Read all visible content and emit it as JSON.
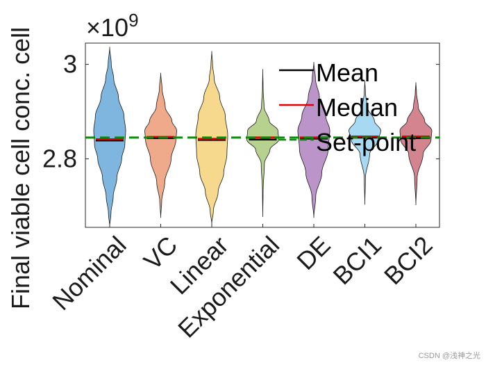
{
  "chart_data": {
    "type": "violin",
    "title": "",
    "xlabel": "",
    "ylabel": "Final viable cell conc. cell",
    "y_exponent_label": "×10",
    "y_exponent_power": "9",
    "ylim": [
      2.655,
      3.045
    ],
    "yticks": [
      {
        "value": 2.8,
        "label": "2.8"
      },
      {
        "value": 3.0,
        "label": "3"
      }
    ],
    "setpoint": 2.845,
    "categories": [
      "Nominal",
      "VC",
      "Linear",
      "Exponential",
      "DE",
      "BCI1",
      "BCI2"
    ],
    "series": [
      {
        "name": "Nominal",
        "color": "#7fb6df",
        "min": 2.656,
        "max": 3.037,
        "mean": 2.841,
        "median": 2.84,
        "profile": [
          [
            2.656,
            0.0
          ],
          [
            2.685,
            0.08
          ],
          [
            2.72,
            0.22
          ],
          [
            2.76,
            0.45
          ],
          [
            2.8,
            0.75
          ],
          [
            2.83,
            0.95
          ],
          [
            2.86,
            1.0
          ],
          [
            2.89,
            0.9
          ],
          [
            2.93,
            0.55
          ],
          [
            2.97,
            0.25
          ],
          [
            3.0,
            0.1
          ],
          [
            3.037,
            0.0
          ]
        ]
      },
      {
        "name": "VC",
        "color": "#eeaa8a",
        "min": 2.675,
        "max": 2.982,
        "mean": 2.846,
        "median": 2.845,
        "profile": [
          [
            2.675,
            0.0
          ],
          [
            2.71,
            0.06
          ],
          [
            2.75,
            0.25
          ],
          [
            2.8,
            0.65
          ],
          [
            2.84,
            0.95
          ],
          [
            2.86,
            1.0
          ],
          [
            2.88,
            0.7
          ],
          [
            2.91,
            0.28
          ],
          [
            2.95,
            0.08
          ],
          [
            2.982,
            0.0
          ]
        ]
      },
      {
        "name": "Linear",
        "color": "#f6d98d",
        "min": 2.662,
        "max": 3.028,
        "mean": 2.842,
        "median": 2.841,
        "profile": [
          [
            2.662,
            0.0
          ],
          [
            2.69,
            0.1
          ],
          [
            2.73,
            0.4
          ],
          [
            2.77,
            0.75
          ],
          [
            2.81,
            0.95
          ],
          [
            2.85,
            1.0
          ],
          [
            2.89,
            0.85
          ],
          [
            2.93,
            0.5
          ],
          [
            2.97,
            0.15
          ],
          [
            3.0,
            0.05
          ],
          [
            3.028,
            0.0
          ]
        ]
      },
      {
        "name": "Exponential",
        "color": "#b7d18f",
        "min": 2.677,
        "max": 2.99,
        "mean": 2.843,
        "median": 2.844,
        "profile": [
          [
            2.677,
            0.0
          ],
          [
            2.73,
            0.02
          ],
          [
            2.79,
            0.1
          ],
          [
            2.82,
            0.45
          ],
          [
            2.84,
            1.0
          ],
          [
            2.86,
            0.95
          ],
          [
            2.88,
            0.4
          ],
          [
            2.91,
            0.08
          ],
          [
            2.95,
            0.02
          ],
          [
            2.99,
            0.0
          ]
        ]
      },
      {
        "name": "DE",
        "color": "#bb94c9",
        "min": 2.675,
        "max": 3.005,
        "mean": 2.845,
        "median": 2.844,
        "profile": [
          [
            2.675,
            0.0
          ],
          [
            2.72,
            0.12
          ],
          [
            2.77,
            0.5
          ],
          [
            2.82,
            0.9
          ],
          [
            2.86,
            1.0
          ],
          [
            2.89,
            0.75
          ],
          [
            2.93,
            0.35
          ],
          [
            2.97,
            0.1
          ],
          [
            3.005,
            0.0
          ]
        ]
      },
      {
        "name": "BCI1",
        "color": "#a7d9f2",
        "min": 2.703,
        "max": 2.965,
        "mean": 2.847,
        "median": 2.846,
        "profile": [
          [
            2.703,
            0.0
          ],
          [
            2.76,
            0.04
          ],
          [
            2.81,
            0.3
          ],
          [
            2.84,
            0.85
          ],
          [
            2.86,
            1.0
          ],
          [
            2.88,
            0.6
          ],
          [
            2.91,
            0.15
          ],
          [
            2.94,
            0.04
          ],
          [
            2.965,
            0.0
          ]
        ]
      },
      {
        "name": "BCI2",
        "color": "#d4848f",
        "min": 2.702,
        "max": 2.962,
        "mean": 2.846,
        "median": 2.846,
        "profile": [
          [
            2.702,
            0.0
          ],
          [
            2.76,
            0.08
          ],
          [
            2.81,
            0.45
          ],
          [
            2.84,
            0.95
          ],
          [
            2.86,
            1.0
          ],
          [
            2.88,
            0.55
          ],
          [
            2.91,
            0.15
          ],
          [
            2.94,
            0.04
          ],
          [
            2.962,
            0.0
          ]
        ]
      }
    ],
    "legend": {
      "placement": "top-right",
      "entries": [
        {
          "label": "Mean",
          "color": "#000000",
          "style": "solid"
        },
        {
          "label": "Median",
          "color": "#e00000",
          "style": "solid"
        },
        {
          "label": "Set-point",
          "color": "#0a8a0a",
          "style": "dashed"
        }
      ]
    },
    "grid": false
  },
  "watermark": "CSDN @浅神之光"
}
